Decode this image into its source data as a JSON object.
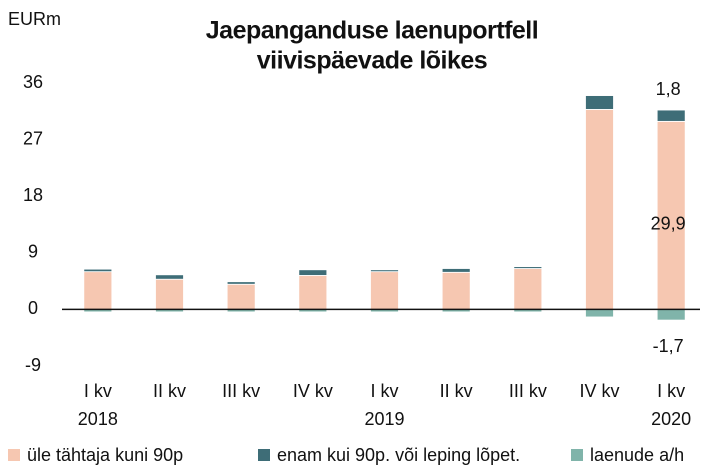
{
  "chart_data": {
    "type": "stacked_bar",
    "title": [
      "Jaepanganduse laenuportfell",
      "viivispäevade lõikes"
    ],
    "y_unit": "EURm",
    "categories": [
      "I kv",
      "II kv",
      "III kv",
      "IV kv",
      "I kv",
      "II kv",
      "III kv",
      "IV kv",
      "I kv"
    ],
    "years": [
      "2018",
      null,
      null,
      null,
      "2019",
      null,
      null,
      null,
      "2020"
    ],
    "series": [
      {
        "name": "üle tähtaja kuni 90p",
        "color": "#f6c7b1",
        "values": [
          6.0,
          4.8,
          4.0,
          5.4,
          6.0,
          5.9,
          6.5,
          31.8,
          29.9
        ],
        "value_labels": [
          null,
          null,
          null,
          null,
          null,
          null,
          null,
          null,
          "29,9"
        ]
      },
      {
        "name": "enam kui 90p. või leping lõpet.",
        "color": "#3e6d77",
        "values": [
          0.4,
          0.7,
          0.4,
          0.9,
          0.3,
          0.6,
          0.3,
          2.2,
          1.8
        ],
        "value_labels": [
          null,
          null,
          null,
          null,
          null,
          null,
          null,
          null,
          "1,8"
        ]
      },
      {
        "name": "laenude a/h",
        "color": "#80b4aa",
        "values": [
          -0.4,
          -0.4,
          -0.4,
          -0.4,
          -0.4,
          -0.4,
          -0.4,
          -1.2,
          -1.7
        ],
        "value_labels": [
          null,
          null,
          null,
          null,
          null,
          null,
          null,
          null,
          "-1,7"
        ]
      }
    ],
    "ylim": [
      -9,
      36
    ],
    "yticks": [
      -9,
      0,
      9,
      18,
      27,
      36
    ],
    "legend": "bottom"
  }
}
